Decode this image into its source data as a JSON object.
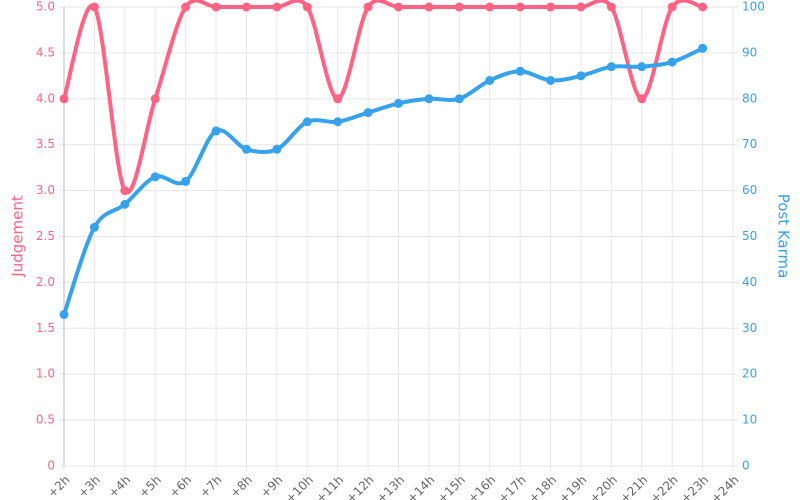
{
  "chart_data": {
    "type": "line",
    "categories": [
      "+2h",
      "+3h",
      "+4h",
      "+5h",
      "+6h",
      "+7h",
      "+8h",
      "+9h",
      "+10h",
      "+11h",
      "+12h",
      "+13h",
      "+14h",
      "+15h",
      "+16h",
      "+17h",
      "+18h",
      "+19h",
      "+20h",
      "+21h",
      "+22h",
      "+23h",
      "+24h"
    ],
    "series": [
      {
        "name": "Judgement",
        "color": "#ff6384",
        "axis": "y",
        "values": [
          4,
          5,
          3,
          4,
          5,
          5,
          5,
          5,
          5,
          4,
          5,
          5,
          5,
          5,
          5,
          5,
          5,
          5,
          5,
          4,
          5,
          5,
          null
        ]
      },
      {
        "name": "Post Karma",
        "color": "#36a2eb",
        "axis": "y2",
        "values": [
          33,
          52,
          57,
          63,
          62,
          73,
          69,
          69,
          75,
          75,
          77,
          79,
          80,
          80,
          84,
          86,
          84,
          85,
          87,
          87,
          88,
          91,
          null
        ]
      }
    ],
    "ylabel": "Judgement",
    "y2label": "Post Karma",
    "ylim": [
      0,
      5
    ],
    "yticks": [
      0,
      {
        "value": 0.5,
        "label": "0.5"
      },
      {
        "value": 1,
        "label": "1.0"
      },
      {
        "value": 1.5,
        "label": "1.5"
      },
      {
        "value": 2,
        "label": "2.0"
      },
      {
        "value": 2.5,
        "label": "2.5"
      },
      {
        "value": 3,
        "label": "3.0"
      },
      {
        "value": 3.5,
        "label": "3.5"
      },
      {
        "value": 4,
        "label": "4.0"
      },
      {
        "value": 4.5,
        "label": "4.5"
      },
      {
        "value": 5,
        "label": "5.0"
      }
    ],
    "y2lim": [
      0,
      100
    ],
    "y2ticks": [
      0,
      10,
      20,
      30,
      40,
      50,
      60,
      70,
      80,
      90,
      100
    ],
    "grid": true
  }
}
